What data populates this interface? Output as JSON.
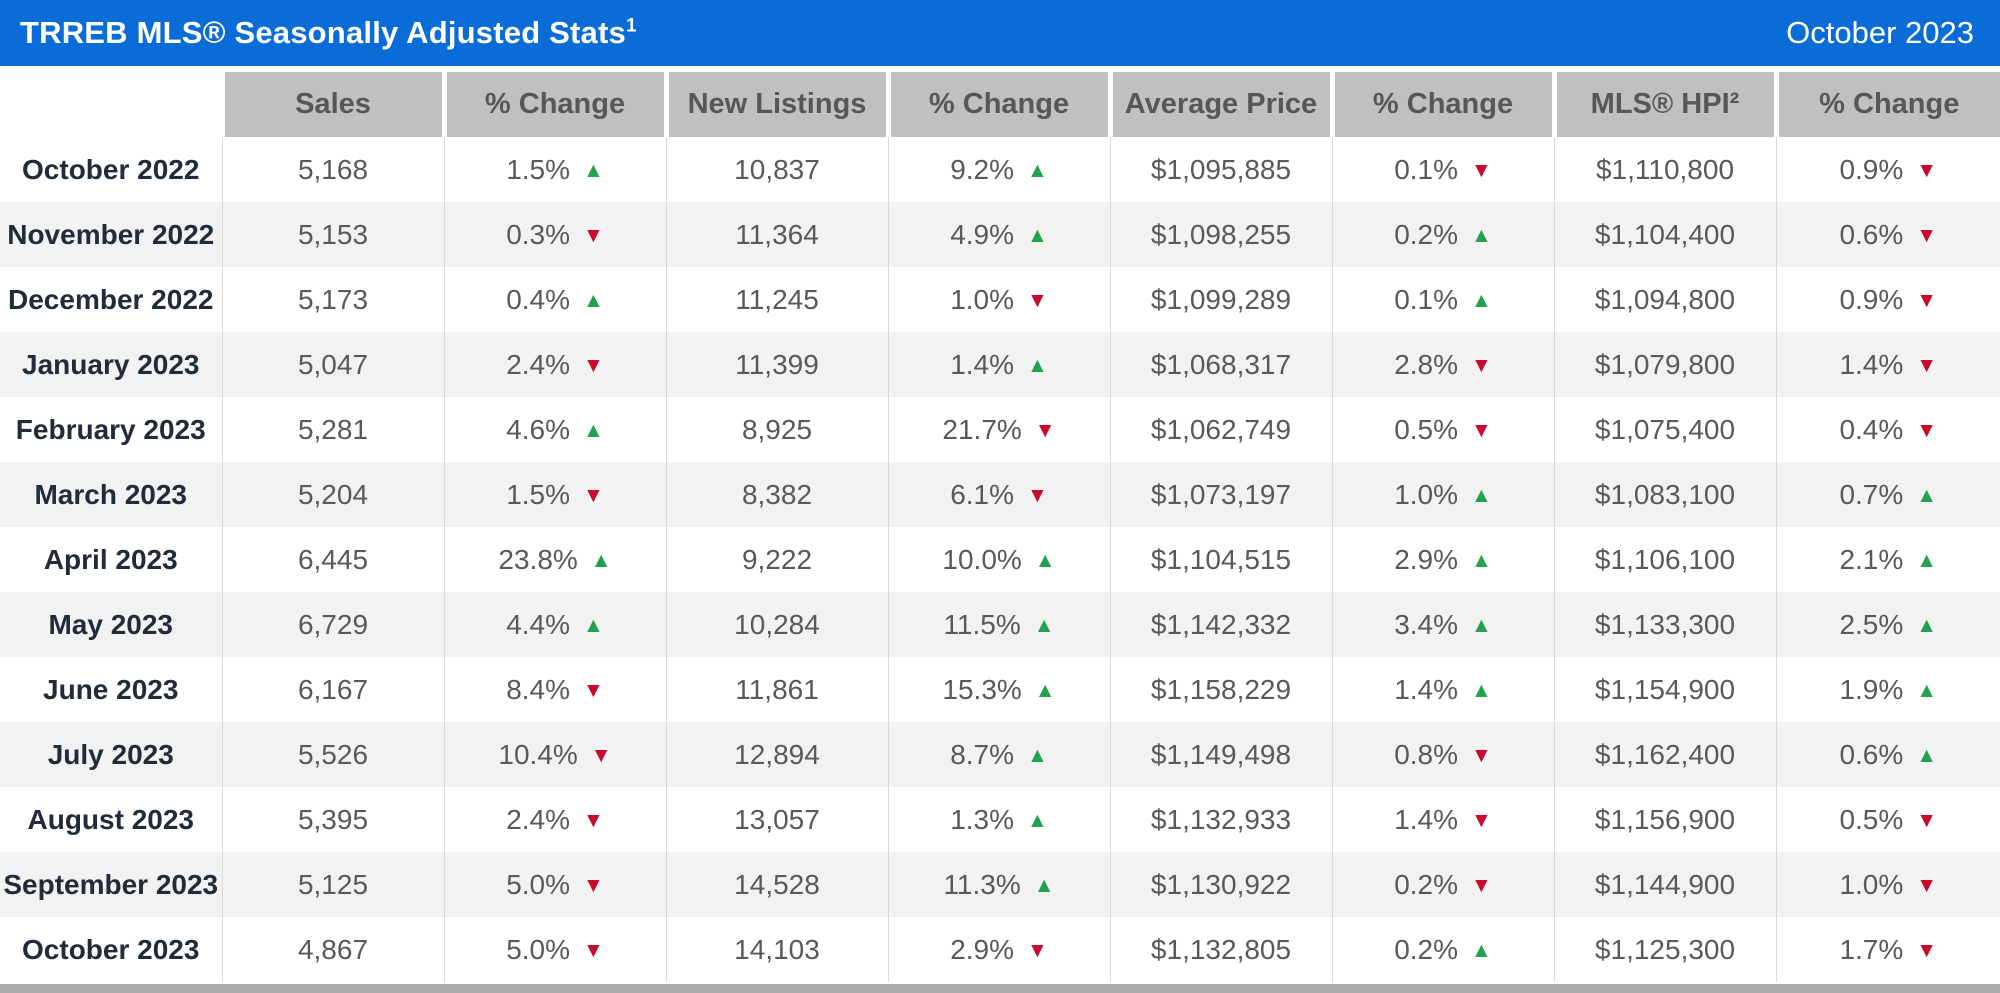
{
  "title_bar": {
    "title": "TRREB MLS® Seasonally Adjusted Stats",
    "title_superscript": "1",
    "period": "October 2023"
  },
  "icons": {
    "up_arrow": "▲",
    "down_arrow": "▼"
  },
  "colors": {
    "title_bar_blue": "#0a6cd6",
    "header_cell_gray": "#c0c0c0",
    "header_text_gray": "#575757",
    "month_text_dark": "#222b3a",
    "data_text_gray": "#58595b",
    "alt_row_gray": "#f2f2f2",
    "cell_border_gray": "#d9d9d9",
    "up_green": "#22a14e",
    "down_red": "#c80a2d",
    "bottom_bar_gray": "#ababab"
  },
  "chart_data": {
    "type": "table",
    "title": "TRREB MLS® Seasonally Adjusted Stats¹",
    "period": "October 2023",
    "columns": [
      "",
      "Sales",
      "% Change",
      "New Listings",
      "% Change",
      "Average Price",
      "% Change",
      "MLS® HPI²",
      "% Change"
    ],
    "rows": [
      {
        "month": "October 2022",
        "sales": "5,168",
        "sales_change": "1.5%",
        "sales_dir": "up",
        "new_listings": "10,837",
        "new_listings_change": "9.2%",
        "new_listings_dir": "up",
        "average_price": "$1,095,885",
        "average_price_change": "0.1%",
        "average_price_dir": "down",
        "hpi": "$1,110,800",
        "hpi_change": "0.9%",
        "hpi_dir": "down"
      },
      {
        "month": "November 2022",
        "sales": "5,153",
        "sales_change": "0.3%",
        "sales_dir": "down",
        "new_listings": "11,364",
        "new_listings_change": "4.9%",
        "new_listings_dir": "up",
        "average_price": "$1,098,255",
        "average_price_change": "0.2%",
        "average_price_dir": "up",
        "hpi": "$1,104,400",
        "hpi_change": "0.6%",
        "hpi_dir": "down"
      },
      {
        "month": "December 2022",
        "sales": "5,173",
        "sales_change": "0.4%",
        "sales_dir": "up",
        "new_listings": "11,245",
        "new_listings_change": "1.0%",
        "new_listings_dir": "down",
        "average_price": "$1,099,289",
        "average_price_change": "0.1%",
        "average_price_dir": "up",
        "hpi": "$1,094,800",
        "hpi_change": "0.9%",
        "hpi_dir": "down"
      },
      {
        "month": "January 2023",
        "sales": "5,047",
        "sales_change": "2.4%",
        "sales_dir": "down",
        "new_listings": "11,399",
        "new_listings_change": "1.4%",
        "new_listings_dir": "up",
        "average_price": "$1,068,317",
        "average_price_change": "2.8%",
        "average_price_dir": "down",
        "hpi": "$1,079,800",
        "hpi_change": "1.4%",
        "hpi_dir": "down"
      },
      {
        "month": "February 2023",
        "sales": "5,281",
        "sales_change": "4.6%",
        "sales_dir": "up",
        "new_listings": "8,925",
        "new_listings_change": "21.7%",
        "new_listings_dir": "down",
        "average_price": "$1,062,749",
        "average_price_change": "0.5%",
        "average_price_dir": "down",
        "hpi": "$1,075,400",
        "hpi_change": "0.4%",
        "hpi_dir": "down"
      },
      {
        "month": "March 2023",
        "sales": "5,204",
        "sales_change": "1.5%",
        "sales_dir": "down",
        "new_listings": "8,382",
        "new_listings_change": "6.1%",
        "new_listings_dir": "down",
        "average_price": "$1,073,197",
        "average_price_change": "1.0%",
        "average_price_dir": "up",
        "hpi": "$1,083,100",
        "hpi_change": "0.7%",
        "hpi_dir": "up"
      },
      {
        "month": "April 2023",
        "sales": "6,445",
        "sales_change": "23.8%",
        "sales_dir": "up",
        "new_listings": "9,222",
        "new_listings_change": "10.0%",
        "new_listings_dir": "up",
        "average_price": "$1,104,515",
        "average_price_change": "2.9%",
        "average_price_dir": "up",
        "hpi": "$1,106,100",
        "hpi_change": "2.1%",
        "hpi_dir": "up"
      },
      {
        "month": "May 2023",
        "sales": "6,729",
        "sales_change": "4.4%",
        "sales_dir": "up",
        "new_listings": "10,284",
        "new_listings_change": "11.5%",
        "new_listings_dir": "up",
        "average_price": "$1,142,332",
        "average_price_change": "3.4%",
        "average_price_dir": "up",
        "hpi": "$1,133,300",
        "hpi_change": "2.5%",
        "hpi_dir": "up"
      },
      {
        "month": "June 2023",
        "sales": "6,167",
        "sales_change": "8.4%",
        "sales_dir": "down",
        "new_listings": "11,861",
        "new_listings_change": "15.3%",
        "new_listings_dir": "up",
        "average_price": "$1,158,229",
        "average_price_change": "1.4%",
        "average_price_dir": "up",
        "hpi": "$1,154,900",
        "hpi_change": "1.9%",
        "hpi_dir": "up"
      },
      {
        "month": "July 2023",
        "sales": "5,526",
        "sales_change": "10.4%",
        "sales_dir": "down",
        "new_listings": "12,894",
        "new_listings_change": "8.7%",
        "new_listings_dir": "up",
        "average_price": "$1,149,498",
        "average_price_change": "0.8%",
        "average_price_dir": "down",
        "hpi": "$1,162,400",
        "hpi_change": "0.6%",
        "hpi_dir": "up"
      },
      {
        "month": "August 2023",
        "sales": "5,395",
        "sales_change": "2.4%",
        "sales_dir": "down",
        "new_listings": "13,057",
        "new_listings_change": "1.3%",
        "new_listings_dir": "up",
        "average_price": "$1,132,933",
        "average_price_change": "1.4%",
        "average_price_dir": "down",
        "hpi": "$1,156,900",
        "hpi_change": "0.5%",
        "hpi_dir": "down"
      },
      {
        "month": "September 2023",
        "sales": "5,125",
        "sales_change": "5.0%",
        "sales_dir": "down",
        "new_listings": "14,528",
        "new_listings_change": "11.3%",
        "new_listings_dir": "up",
        "average_price": "$1,130,922",
        "average_price_change": "0.2%",
        "average_price_dir": "down",
        "hpi": "$1,144,900",
        "hpi_change": "1.0%",
        "hpi_dir": "down"
      },
      {
        "month": "October 2023",
        "sales": "4,867",
        "sales_change": "5.0%",
        "sales_dir": "down",
        "new_listings": "14,103",
        "new_listings_change": "2.9%",
        "new_listings_dir": "down",
        "average_price": "$1,132,805",
        "average_price_change": "0.2%",
        "average_price_dir": "up",
        "hpi": "$1,125,300",
        "hpi_change": "1.7%",
        "hpi_dir": "down"
      }
    ]
  }
}
